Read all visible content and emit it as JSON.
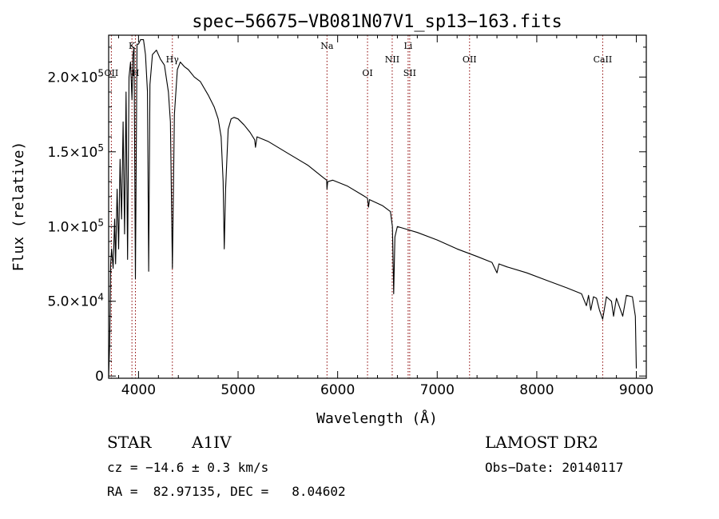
{
  "chart_data": {
    "type": "line",
    "title": "spec−56675−VB081N07V1_sp13−163.fits",
    "xlabel": "Wavelength (Å)",
    "ylabel": "Flux (relative)",
    "xlim": [
      3700,
      9100
    ],
    "ylim": [
      -1500,
      228000
    ],
    "xticks": [
      {
        "value": 4000,
        "label": "4000"
      },
      {
        "value": 5000,
        "label": "5000"
      },
      {
        "value": 6000,
        "label": "6000"
      },
      {
        "value": 7000,
        "label": "7000"
      },
      {
        "value": 8000,
        "label": "8000"
      },
      {
        "value": 9000,
        "label": "9000"
      }
    ],
    "yticks": [
      {
        "value": 0,
        "mant": "0",
        "exp": ""
      },
      {
        "value": 50000,
        "mant": "5.0×10",
        "exp": "4"
      },
      {
        "value": 100000,
        "mant": "1.0×10",
        "exp": "5"
      },
      {
        "value": 150000,
        "mant": "1.5×10",
        "exp": "5"
      },
      {
        "value": 200000,
        "mant": "2.0×10",
        "exp": "5"
      }
    ],
    "line_color": "#000000",
    "marker_color": "#8b0000",
    "lines": [
      {
        "name": "OII",
        "wavelength": 3727,
        "row": 2
      },
      {
        "name": "K",
        "wavelength": 3934,
        "row": 0
      },
      {
        "name": "H",
        "wavelength": 3969,
        "row": 2
      },
      {
        "name": "Hγ",
        "wavelength": 4340,
        "row": 1
      },
      {
        "name": "Na",
        "wavelength": 5893,
        "row": 0
      },
      {
        "name": "OI",
        "wavelength": 6300,
        "row": 2
      },
      {
        "name": "NII",
        "wavelength": 6548,
        "row": 1
      },
      {
        "name": "Li",
        "wavelength": 6708,
        "row": 0
      },
      {
        "name": "SII",
        "wavelength": 6724,
        "row": 2
      },
      {
        "name": "OII",
        "wavelength": 7325,
        "row": 1
      },
      {
        "name": "CaII",
        "wavelength": 8662,
        "row": 1
      }
    ],
    "spectrum": [
      [
        3700,
        0
      ],
      [
        3710,
        20000
      ],
      [
        3715,
        45000
      ],
      [
        3720,
        75000
      ],
      [
        3730,
        85000
      ],
      [
        3745,
        72000
      ],
      [
        3760,
        105000
      ],
      [
        3770,
        75000
      ],
      [
        3785,
        125000
      ],
      [
        3800,
        85000
      ],
      [
        3815,
        145000
      ],
      [
        3830,
        105000
      ],
      [
        3845,
        170000
      ],
      [
        3860,
        95000
      ],
      [
        3875,
        190000
      ],
      [
        3890,
        78000
      ],
      [
        3905,
        200000
      ],
      [
        3920,
        210000
      ],
      [
        3934,
        185000
      ],
      [
        3945,
        215000
      ],
      [
        3955,
        220000
      ],
      [
        3969,
        65000
      ],
      [
        3985,
        222000
      ],
      [
        4000,
        222000
      ],
      [
        4020,
        225000
      ],
      [
        4050,
        225000
      ],
      [
        4070,
        215000
      ],
      [
        4090,
        190000
      ],
      [
        4102,
        70000
      ],
      [
        4115,
        195000
      ],
      [
        4140,
        215000
      ],
      [
        4180,
        218000
      ],
      [
        4220,
        212000
      ],
      [
        4260,
        208000
      ],
      [
        4300,
        190000
      ],
      [
        4320,
        170000
      ],
      [
        4340,
        72000
      ],
      [
        4360,
        175000
      ],
      [
        4390,
        205000
      ],
      [
        4420,
        210000
      ],
      [
        4460,
        207000
      ],
      [
        4500,
        205000
      ],
      [
        4560,
        200000
      ],
      [
        4620,
        197000
      ],
      [
        4700,
        188000
      ],
      [
        4760,
        180000
      ],
      [
        4800,
        172000
      ],
      [
        4830,
        160000
      ],
      [
        4850,
        130000
      ],
      [
        4861,
        85000
      ],
      [
        4875,
        125000
      ],
      [
        4900,
        165000
      ],
      [
        4930,
        172000
      ],
      [
        4960,
        173000
      ],
      [
        5000,
        172000
      ],
      [
        5060,
        168000
      ],
      [
        5120,
        163000
      ],
      [
        5167,
        158000
      ],
      [
        5175,
        153000
      ],
      [
        5190,
        160000
      ],
      [
        5300,
        157000
      ],
      [
        5500,
        149000
      ],
      [
        5700,
        141000
      ],
      [
        5850,
        133000
      ],
      [
        5890,
        131000
      ],
      [
        5893,
        125000
      ],
      [
        5900,
        130000
      ],
      [
        5950,
        131000
      ],
      [
        6100,
        127000
      ],
      [
        6250,
        121000
      ],
      [
        6300,
        119000
      ],
      [
        6310,
        113000
      ],
      [
        6320,
        118000
      ],
      [
        6450,
        114000
      ],
      [
        6530,
        110000
      ],
      [
        6550,
        100000
      ],
      [
        6563,
        55000
      ],
      [
        6575,
        93000
      ],
      [
        6600,
        100000
      ],
      [
        6650,
        99000
      ],
      [
        6800,
        96000
      ],
      [
        7000,
        91000
      ],
      [
        7200,
        85000
      ],
      [
        7400,
        80000
      ],
      [
        7550,
        76000
      ],
      [
        7600,
        69000
      ],
      [
        7620,
        75000
      ],
      [
        7700,
        73000
      ],
      [
        7900,
        69000
      ],
      [
        8100,
        64000
      ],
      [
        8300,
        59000
      ],
      [
        8450,
        55000
      ],
      [
        8498,
        47000
      ],
      [
        8520,
        54000
      ],
      [
        8542,
        44000
      ],
      [
        8570,
        53000
      ],
      [
        8600,
        52000
      ],
      [
        8630,
        44000
      ],
      [
        8662,
        38000
      ],
      [
        8700,
        53000
      ],
      [
        8750,
        50000
      ],
      [
        8771,
        40000
      ],
      [
        8800,
        52000
      ],
      [
        8863,
        40000
      ],
      [
        8900,
        54000
      ],
      [
        8960,
        53000
      ],
      [
        8990,
        40000
      ],
      [
        9000,
        5000
      ]
    ]
  },
  "info": {
    "object_type": "STAR",
    "subclass": "A1IV",
    "survey": "LAMOST DR2",
    "cz": "cz = −14.6 ± 0.3 km/s",
    "obs_date": "Obs−Date: 20140117",
    "coords": "RA =  82.97135, DEC =   8.04602"
  }
}
